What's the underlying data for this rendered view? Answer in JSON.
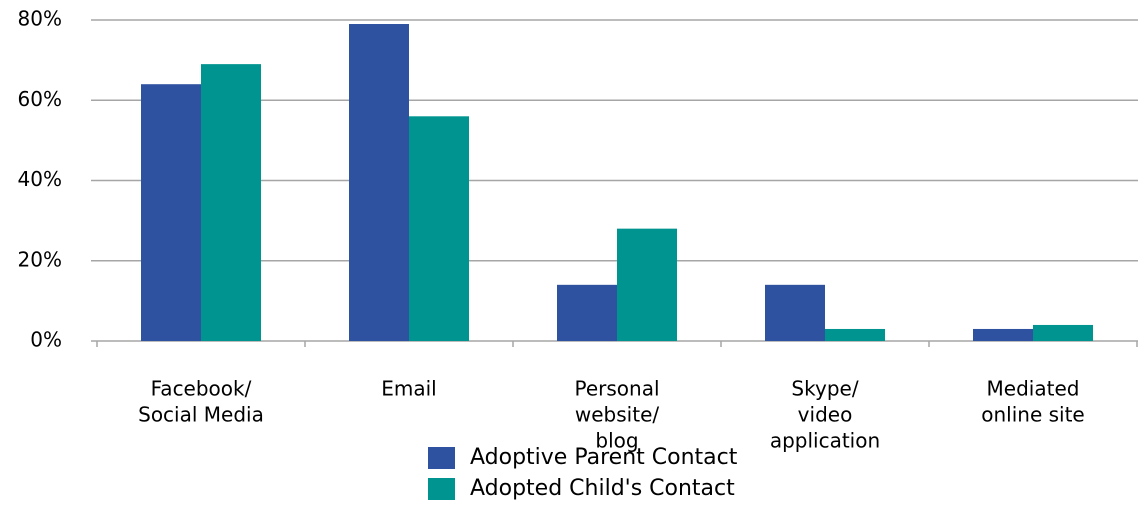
{
  "chart_data": {
    "type": "bar",
    "categories": [
      [
        "Facebook/",
        "Social Media"
      ],
      [
        "Email"
      ],
      [
        "Personal",
        "website/",
        "blog"
      ],
      [
        "Skype/",
        "video",
        "application"
      ],
      [
        "Mediated",
        "online site"
      ]
    ],
    "series": [
      {
        "name": "Adoptive Parent Contact",
        "color": "#2f52a0",
        "values": [
          64,
          79,
          14,
          14,
          3
        ]
      },
      {
        "name": "Adopted Child's Contact",
        "color": "#009490",
        "values": [
          69,
          56,
          28,
          3,
          4
        ]
      }
    ],
    "ylim": [
      0,
      80
    ],
    "yticks": [
      {
        "value": 0,
        "label": "0%"
      },
      {
        "value": 20,
        "label": "20%"
      },
      {
        "value": 40,
        "label": "40%"
      },
      {
        "value": 60,
        "label": "60%"
      },
      {
        "value": 80,
        "label": "80%"
      }
    ],
    "grid": true
  }
}
